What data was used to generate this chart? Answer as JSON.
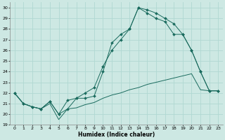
{
  "title": "",
  "xlabel": "Humidex (Indice chaleur)",
  "xlim": [
    -0.5,
    23.5
  ],
  "ylim": [
    19,
    30.5
  ],
  "yticks": [
    19,
    20,
    21,
    22,
    23,
    24,
    25,
    26,
    27,
    28,
    29,
    30
  ],
  "xticks": [
    0,
    1,
    2,
    3,
    4,
    5,
    6,
    7,
    8,
    9,
    10,
    11,
    12,
    13,
    14,
    15,
    16,
    17,
    18,
    19,
    20,
    21,
    22,
    23
  ],
  "bg_color": "#cde8e3",
  "grid_color": "#b0d8d2",
  "line_color": "#1a6b5e",
  "line1_x": [
    0,
    1,
    2,
    3,
    4,
    5,
    6,
    7,
    8,
    9,
    10,
    11,
    12,
    13,
    14,
    15,
    16,
    17,
    18,
    19,
    20,
    21,
    22,
    23
  ],
  "line1_y": [
    22,
    21,
    20.7,
    20.5,
    21,
    19.5,
    20.5,
    20.6,
    20.9,
    21.1,
    21.5,
    21.8,
    22.0,
    22.3,
    22.5,
    22.8,
    23.0,
    23.2,
    23.4,
    23.6,
    23.8,
    22.3,
    22.2,
    22.2
  ],
  "line2_x": [
    0,
    1,
    2,
    3,
    4,
    5,
    6,
    7,
    8,
    9,
    10,
    11,
    12,
    13,
    14,
    15,
    16,
    17,
    18,
    19,
    20,
    21,
    22,
    23
  ],
  "line2_y": [
    22,
    21,
    20.7,
    20.5,
    21.2,
    20.0,
    20.5,
    21.5,
    21.5,
    21.7,
    24.0,
    26.7,
    27.5,
    28.0,
    30.0,
    29.8,
    29.5,
    29.0,
    28.5,
    27.5,
    26.0,
    24.0,
    22.2,
    22.2
  ],
  "line3_x": [
    0,
    1,
    2,
    3,
    4,
    5,
    6,
    7,
    8,
    9,
    10,
    11,
    12,
    13,
    14,
    15,
    16,
    17,
    18,
    19,
    20,
    21,
    22,
    23
  ],
  "line3_y": [
    22,
    21,
    20.7,
    20.5,
    21.2,
    20.0,
    21.3,
    21.5,
    22.0,
    22.5,
    24.5,
    26.0,
    27.0,
    28.0,
    30.0,
    29.5,
    29.0,
    28.7,
    27.5,
    27.5,
    26.0,
    24.0,
    22.2,
    22.2
  ],
  "markersize": 2.0
}
